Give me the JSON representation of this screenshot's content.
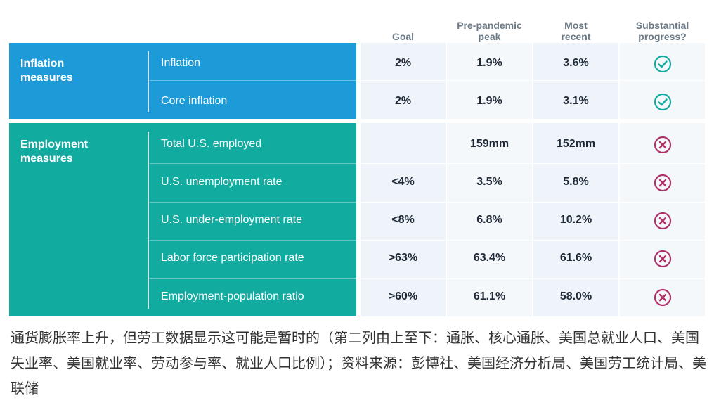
{
  "headers": {
    "goal": "Goal",
    "pre": "Pre-pandemic\npeak",
    "recent": "Most\nrecent",
    "progress": "Substantial\nprogress?"
  },
  "sections": [
    {
      "label": "Inflation\nmeasures",
      "color": "#1c9bd8",
      "rows": [
        {
          "name": "Inflation",
          "goal": "2%",
          "pre": "1.9%",
          "recent": "3.6%",
          "progress": "check"
        },
        {
          "name": "Core inflation",
          "goal": "2%",
          "pre": "1.9%",
          "recent": "3.1%",
          "progress": "check"
        }
      ]
    },
    {
      "label": "Employment\nmeasures",
      "color": "#12aba0",
      "rows": [
        {
          "name": "Total U.S. employed",
          "goal": "",
          "pre": "159mm",
          "recent": "152mm",
          "progress": "cross"
        },
        {
          "name": "U.S. unemployment rate",
          "goal": "<4%",
          "pre": "3.5%",
          "recent": "5.8%",
          "progress": "cross"
        },
        {
          "name": "U.S. under-employment rate",
          "goal": "<8%",
          "pre": "6.8%",
          "recent": "10.2%",
          "progress": "cross"
        },
        {
          "name": "Labor force participation rate",
          "goal": ">63%",
          "pre": "63.4%",
          "recent": "61.6%",
          "progress": "cross"
        },
        {
          "name": "Employment-population ratio",
          "goal": ">60%",
          "pre": "61.1%",
          "recent": "58.0%",
          "progress": "cross"
        }
      ]
    }
  ],
  "colors": {
    "check": "#12aba0",
    "cross": "#b0306a"
  },
  "caption": "通货膨胀率上升，但劳工数据显示这可能是暂时的（第二列由上至下：通胀、核心通胀、美国总就业人口、美国失业率、美国就业率、劳动参与率、就业人口比例）；资料来源：彭博社、美国经济分析局、美国劳工统计局、美联储"
}
